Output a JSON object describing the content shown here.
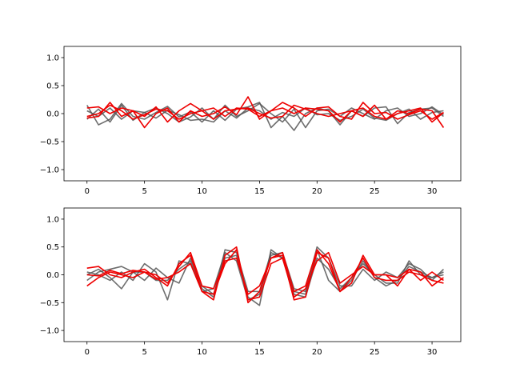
{
  "chart_data": [
    {
      "type": "line",
      "xlim": [
        -2.0,
        32.5
      ],
      "ylim": [
        -1.2,
        1.2
      ],
      "x_ticks": [
        0,
        5,
        10,
        15,
        20,
        25,
        30
      ],
      "y_ticks": [
        -1.0,
        -0.5,
        0.0,
        0.5,
        1.0
      ],
      "x_tick_labels": [
        "0",
        "5",
        "10",
        "15",
        "20",
        "25",
        "30"
      ],
      "y_tick_labels": [
        "−1.0",
        "−0.5",
        "0.0",
        "0.5",
        "1.0"
      ],
      "grid": false,
      "series": [
        {
          "color": "#555555",
          "values": [
            0.15,
            -0.2,
            -0.1,
            0.18,
            -0.05,
            -0.1,
            0.02,
            0.13,
            -0.06,
            0.03,
            -0.15,
            0.05,
            -0.12,
            0.08,
            0.12,
            0.2,
            -0.25,
            -0.05,
            -0.3,
            0.0,
            0.1,
            0.05,
            -0.2,
            0.05,
            -0.05,
            0.1,
            0.12,
            -0.18,
            0.02,
            0.08,
            0.1,
            -0.05
          ]
        },
        {
          "color": "#555555",
          "values": [
            -0.1,
            0.08,
            -0.15,
            0.15,
            -0.12,
            0.02,
            0.1,
            0.0,
            -0.15,
            -0.06,
            0.1,
            -0.1,
            0.15,
            -0.05,
            0.05,
            0.18,
            0.0,
            -0.15,
            0.08,
            -0.25,
            0.05,
            0.08,
            -0.05,
            0.1,
            0.0,
            -0.1,
            0.05,
            0.1,
            -0.05,
            0.0,
            0.12,
            -0.02
          ]
        },
        {
          "color": "#555555",
          "values": [
            0.05,
            -0.05,
            0.1,
            -0.1,
            0.05,
            0.02,
            -0.08,
            0.06,
            -0.02,
            -0.12,
            -0.1,
            -0.15,
            0.05,
            -0.08,
            0.1,
            0.05,
            -0.1,
            0.02,
            -0.05,
            0.1,
            -0.02,
            0.0,
            -0.12,
            -0.05,
            0.08,
            -0.08,
            -0.12,
            0.0,
            0.08,
            -0.1,
            0.02,
            0.05
          ]
        },
        {
          "color": "#ee0000",
          "values": [
            -0.08,
            -0.05,
            0.2,
            -0.05,
            0.05,
            -0.25,
            0.0,
            0.1,
            -0.15,
            0.05,
            -0.05,
            0.0,
            0.12,
            -0.02,
            0.3,
            -0.1,
            0.05,
            0.2,
            0.1,
            -0.05,
            0.1,
            0.12,
            -0.05,
            -0.1,
            0.2,
            0.0,
            0.02,
            -0.1,
            -0.02,
            0.05,
            -0.1,
            0.02
          ]
        },
        {
          "color": "#ee0000",
          "values": [
            0.1,
            0.12,
            0.0,
            0.1,
            0.05,
            -0.05,
            0.12,
            -0.15,
            0.05,
            0.18,
            0.05,
            -0.1,
            0.05,
            0.08,
            0.1,
            0.0,
            -0.08,
            -0.05,
            0.15,
            0.08,
            0.0,
            -0.05,
            0.0,
            0.05,
            -0.05,
            0.15,
            -0.1,
            0.0,
            0.05,
            0.1,
            -0.15,
            0.02
          ]
        },
        {
          "color": "#ee0000",
          "values": [
            -0.05,
            0.0,
            0.15,
            0.05,
            -0.1,
            -0.02,
            0.08,
            0.05,
            -0.1,
            0.0,
            0.05,
            0.1,
            -0.05,
            0.1,
            0.08,
            -0.05,
            0.05,
            0.1,
            0.0,
            0.1,
            0.08,
            0.05,
            -0.15,
            0.05,
            0.1,
            -0.05,
            -0.1,
            0.05,
            0.0,
            0.08,
            0.05,
            -0.25
          ]
        }
      ]
    },
    {
      "type": "line",
      "xlim": [
        -2.0,
        32.5
      ],
      "ylim": [
        -1.2,
        1.2
      ],
      "x_ticks": [
        0,
        5,
        10,
        15,
        20,
        25,
        30
      ],
      "y_ticks": [
        -1.0,
        -0.5,
        0.0,
        0.5,
        1.0
      ],
      "x_tick_labels": [
        "0",
        "5",
        "10",
        "15",
        "20",
        "25",
        "30"
      ],
      "y_tick_labels": [
        "−1.0",
        "−0.5",
        "0.0",
        "0.5",
        "1.0"
      ],
      "grid": false,
      "series": [
        {
          "color": "#555555",
          "values": [
            -0.1,
            0.05,
            0.1,
            0.15,
            0.05,
            -0.1,
            0.12,
            -0.05,
            -0.15,
            0.3,
            -0.2,
            -0.35,
            0.3,
            0.35,
            -0.4,
            -0.55,
            0.45,
            0.3,
            -0.3,
            -0.35,
            0.45,
            -0.1,
            -0.3,
            -0.1,
            0.25,
            -0.05,
            -0.2,
            -0.1,
            0.15,
            0.05,
            -0.05,
            0.05
          ]
        },
        {
          "color": "#555555",
          "values": [
            0.05,
            0.0,
            -0.1,
            0.05,
            -0.1,
            0.2,
            0.05,
            -0.45,
            0.25,
            0.2,
            -0.3,
            -0.25,
            0.4,
            0.25,
            -0.45,
            -0.35,
            0.35,
            0.4,
            -0.25,
            -0.3,
            0.5,
            0.3,
            -0.2,
            -0.2,
            0.1,
            -0.1,
            0.05,
            -0.05,
            0.2,
            0.1,
            -0.1,
            0.1
          ]
        },
        {
          "color": "#555555",
          "values": [
            0.0,
            0.1,
            -0.05,
            -0.25,
            0.05,
            0.05,
            -0.1,
            -0.1,
            0.1,
            0.25,
            -0.25,
            -0.4,
            0.45,
            0.4,
            -0.3,
            -0.3,
            0.4,
            0.3,
            -0.35,
            -0.4,
            0.3,
            0.1,
            -0.25,
            -0.05,
            0.2,
            0.0,
            -0.15,
            -0.15,
            0.25,
            0.0,
            -0.05,
            0.0
          ]
        },
        {
          "color": "#ee0000",
          "values": [
            0.12,
            0.15,
            0.0,
            -0.05,
            0.05,
            0.1,
            -0.05,
            -0.2,
            0.2,
            0.35,
            -0.3,
            -0.45,
            0.35,
            0.5,
            -0.5,
            -0.3,
            0.3,
            0.35,
            -0.45,
            -0.4,
            0.4,
            0.3,
            -0.3,
            -0.15,
            0.35,
            0.0,
            0.0,
            -0.05,
            0.1,
            0.05,
            -0.2,
            -0.05
          ]
        },
        {
          "color": "#ee0000",
          "values": [
            -0.2,
            -0.05,
            0.05,
            0.0,
            -0.05,
            0.05,
            0.0,
            -0.15,
            0.15,
            0.4,
            -0.2,
            -0.25,
            0.25,
            0.3,
            -0.35,
            -0.2,
            0.3,
            0.4,
            -0.3,
            -0.2,
            0.45,
            0.2,
            -0.3,
            -0.05,
            0.3,
            -0.05,
            -0.1,
            -0.1,
            0.05,
            0.0,
            -0.1,
            -0.15
          ]
        },
        {
          "color": "#ee0000",
          "values": [
            0.0,
            -0.02,
            0.08,
            0.02,
            0.08,
            0.05,
            -0.08,
            -0.05,
            0.05,
            0.2,
            -0.3,
            -0.35,
            0.2,
            0.45,
            -0.45,
            -0.4,
            0.2,
            0.3,
            -0.4,
            -0.25,
            0.25,
            0.4,
            -0.15,
            0.0,
            0.15,
            0.0,
            0.0,
            -0.2,
            0.1,
            -0.1,
            0.05,
            -0.1
          ]
        }
      ]
    }
  ]
}
